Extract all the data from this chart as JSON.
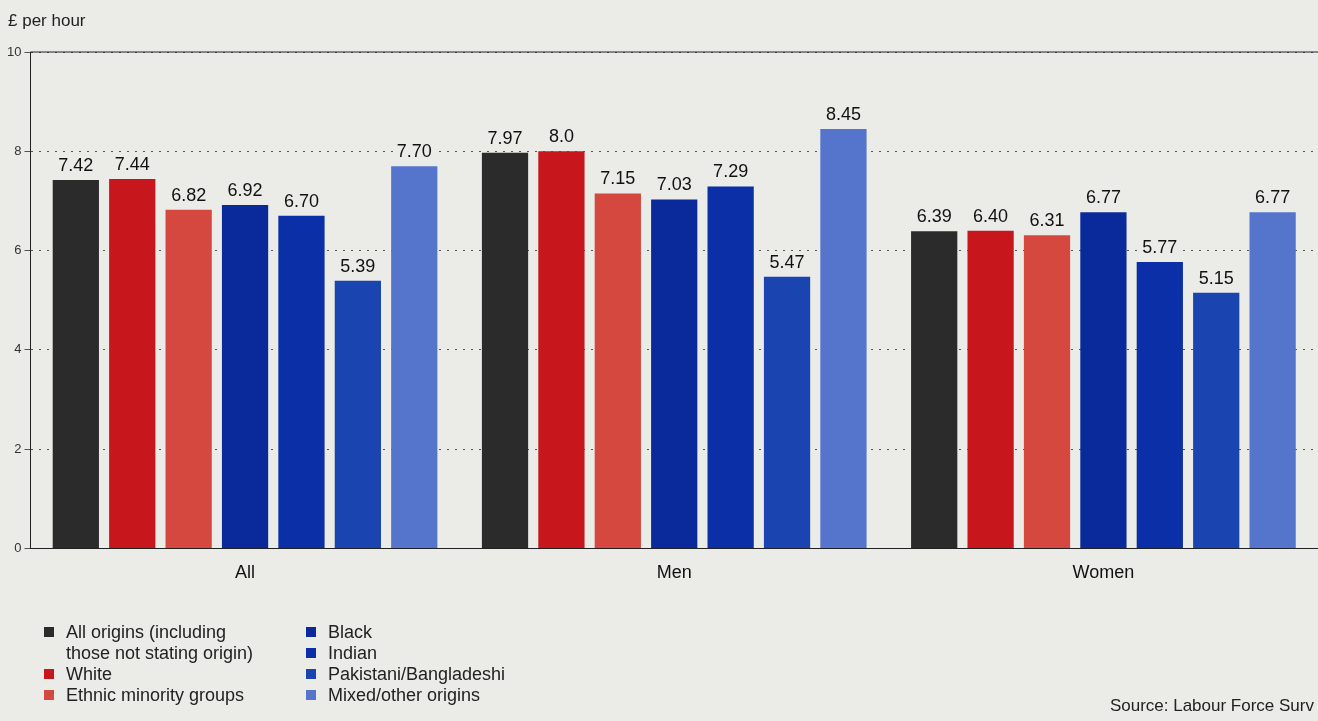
{
  "chart_data": {
    "type": "bar",
    "ylabel": "£ per hour",
    "categories": [
      "All",
      "Men",
      "Women"
    ],
    "series": [
      {
        "name": "All origins (including those not stating origin)",
        "color": "#2b2b2b",
        "values": [
          7.42,
          7.97,
          6.39
        ],
        "value_labels": [
          "7.42",
          "7.97",
          "6.39"
        ]
      },
      {
        "name": "White",
        "color": "#c8161d",
        "values": [
          7.44,
          8.0,
          6.4
        ],
        "value_labels": [
          "7.44",
          "8.0",
          "6.40"
        ]
      },
      {
        "name": "Ethnic minority groups",
        "color": "#d4483f",
        "values": [
          6.82,
          7.15,
          6.31
        ],
        "value_labels": [
          "6.82",
          "7.15",
          "6.31"
        ]
      },
      {
        "name": "Black",
        "color": "#0a2a9c",
        "values": [
          6.92,
          7.03,
          6.77
        ],
        "value_labels": [
          "6.92",
          "7.03",
          "6.77"
        ]
      },
      {
        "name": "Indian",
        "color": "#0b2fa6",
        "values": [
          6.7,
          7.29,
          5.77
        ],
        "value_labels": [
          "6.70",
          "7.29",
          "5.77"
        ]
      },
      {
        "name": "Pakistani/Bangladeshi",
        "color": "#1a45b0",
        "values": [
          5.39,
          5.47,
          5.15
        ],
        "value_labels": [
          "5.39",
          "5.47",
          "5.15"
        ]
      },
      {
        "name": "Mixed/other origins",
        "color": "#5574cc",
        "values": [
          7.7,
          8.45,
          6.77
        ],
        "value_labels": [
          "7.70",
          "8.45",
          "6.77"
        ]
      }
    ],
    "ylim": [
      0,
      10
    ],
    "yticks": [
      0,
      2,
      4,
      6,
      8,
      10
    ],
    "grid": "y",
    "legend": "bottom left",
    "annotations": [
      "Source: Labour Force Surv"
    ]
  }
}
